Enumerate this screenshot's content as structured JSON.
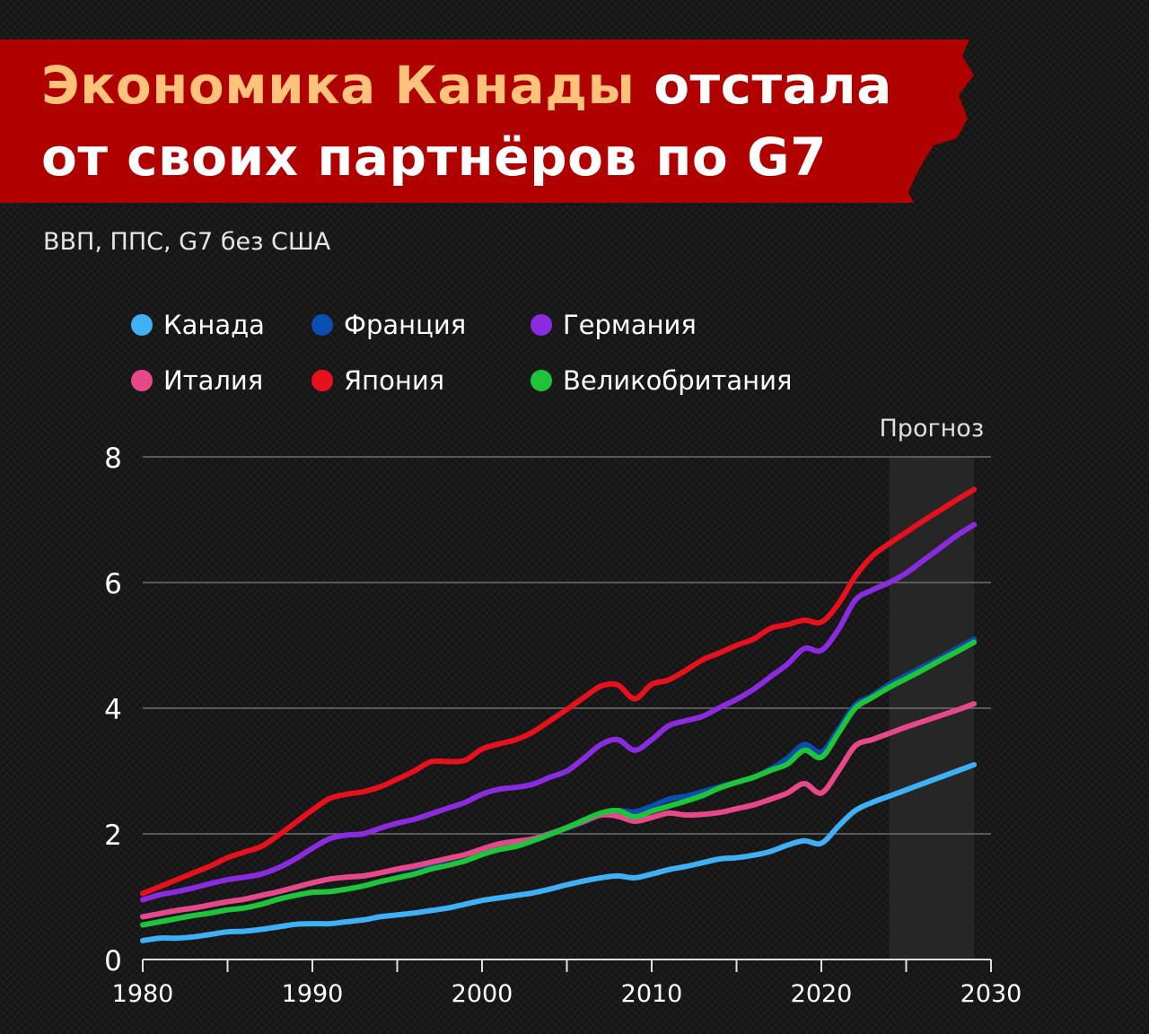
{
  "header": {
    "title_line1_accent": "Экономика Канады",
    "title_line1_rest": "отстала",
    "title_line2": "от своих партнёров по G7",
    "subtitle": "ВВП, ППС, G7 без США"
  },
  "colors": {
    "banner": "#b00000",
    "accent_text": "#ffc27a"
  },
  "chart_data": {
    "type": "line",
    "title": "",
    "xlabel": "",
    "ylabel": "",
    "xlim": [
      1980,
      2030
    ],
    "ylim": [
      0,
      8
    ],
    "x_ticks": [
      1980,
      1990,
      2000,
      2010,
      2020,
      2030
    ],
    "y_ticks": [
      0,
      2,
      4,
      6,
      8
    ],
    "grid": "horizontal",
    "forecast": {
      "label": "Прогноз",
      "start": 2024,
      "end": 2029
    },
    "legend_position": "top-left",
    "x": [
      1980,
      1981,
      1982,
      1983,
      1984,
      1985,
      1986,
      1987,
      1988,
      1989,
      1990,
      1991,
      1992,
      1993,
      1994,
      1995,
      1996,
      1997,
      1998,
      1999,
      2000,
      2001,
      2002,
      2003,
      2004,
      2005,
      2006,
      2007,
      2008,
      2009,
      2010,
      2011,
      2012,
      2013,
      2014,
      2015,
      2016,
      2017,
      2018,
      2019,
      2020,
      2021,
      2022,
      2023,
      2024,
      2025,
      2026,
      2027,
      2028,
      2029
    ],
    "series": [
      {
        "name": "Канада",
        "color": "#3fb0f5",
        "values": [
          0.3,
          0.34,
          0.34,
          0.36,
          0.4,
          0.44,
          0.45,
          0.48,
          0.52,
          0.56,
          0.57,
          0.57,
          0.6,
          0.63,
          0.68,
          0.71,
          0.74,
          0.78,
          0.82,
          0.88,
          0.94,
          0.98,
          1.02,
          1.06,
          1.12,
          1.19,
          1.25,
          1.3,
          1.33,
          1.3,
          1.36,
          1.43,
          1.48,
          1.54,
          1.6,
          1.62,
          1.66,
          1.72,
          1.82,
          1.89,
          1.85,
          2.12,
          2.37,
          2.5,
          2.6,
          2.7,
          2.8,
          2.9,
          3.0,
          3.1
        ]
      },
      {
        "name": "Франция",
        "color": "#0a4fb0",
        "values": [
          0.68,
          0.73,
          0.78,
          0.82,
          0.87,
          0.92,
          0.96,
          1.02,
          1.08,
          1.15,
          1.22,
          1.28,
          1.31,
          1.33,
          1.38,
          1.43,
          1.47,
          1.53,
          1.6,
          1.67,
          1.76,
          1.84,
          1.88,
          1.92,
          2.01,
          2.09,
          2.19,
          2.3,
          2.37,
          2.35,
          2.44,
          2.55,
          2.6,
          2.67,
          2.75,
          2.82,
          2.9,
          3.03,
          3.2,
          3.42,
          3.3,
          3.66,
          4.05,
          4.2,
          4.38,
          4.52,
          4.66,
          4.8,
          4.95,
          5.1
        ]
      },
      {
        "name": "Германия",
        "color": "#8a2be2",
        "values": [
          0.95,
          1.03,
          1.08,
          1.14,
          1.21,
          1.27,
          1.31,
          1.36,
          1.46,
          1.6,
          1.77,
          1.92,
          1.98,
          2.0,
          2.09,
          2.17,
          2.23,
          2.32,
          2.41,
          2.5,
          2.63,
          2.71,
          2.74,
          2.79,
          2.9,
          3.0,
          3.2,
          3.42,
          3.5,
          3.33,
          3.5,
          3.72,
          3.8,
          3.87,
          4.01,
          4.14,
          4.3,
          4.5,
          4.7,
          4.95,
          4.92,
          5.25,
          5.72,
          5.88,
          6.0,
          6.15,
          6.35,
          6.55,
          6.75,
          6.92
        ]
      },
      {
        "name": "Италия",
        "color": "#e8488a",
        "values": [
          0.68,
          0.73,
          0.78,
          0.82,
          0.87,
          0.92,
          0.96,
          1.02,
          1.08,
          1.15,
          1.22,
          1.28,
          1.31,
          1.33,
          1.38,
          1.44,
          1.49,
          1.55,
          1.61,
          1.67,
          1.76,
          1.84,
          1.88,
          1.92,
          2.0,
          2.1,
          2.2,
          2.3,
          2.28,
          2.2,
          2.26,
          2.33,
          2.3,
          2.31,
          2.34,
          2.4,
          2.46,
          2.55,
          2.65,
          2.8,
          2.65,
          3.0,
          3.4,
          3.5,
          3.6,
          3.7,
          3.79,
          3.88,
          3.97,
          4.07
        ]
      },
      {
        "name": "Япония",
        "color": "#e8101c",
        "values": [
          1.05,
          1.16,
          1.27,
          1.38,
          1.49,
          1.62,
          1.71,
          1.8,
          1.98,
          2.18,
          2.38,
          2.56,
          2.63,
          2.67,
          2.75,
          2.87,
          3.0,
          3.15,
          3.15,
          3.17,
          3.35,
          3.43,
          3.5,
          3.62,
          3.8,
          3.98,
          4.17,
          4.35,
          4.37,
          4.15,
          4.38,
          4.45,
          4.6,
          4.77,
          4.88,
          5.0,
          5.1,
          5.27,
          5.33,
          5.4,
          5.37,
          5.66,
          6.1,
          6.42,
          6.62,
          6.8,
          6.98,
          7.15,
          7.32,
          7.48
        ]
      },
      {
        "name": "Великобритания",
        "color": "#1ec43a",
        "values": [
          0.55,
          0.6,
          0.65,
          0.7,
          0.74,
          0.79,
          0.82,
          0.88,
          0.96,
          1.02,
          1.07,
          1.08,
          1.12,
          1.17,
          1.24,
          1.3,
          1.36,
          1.44,
          1.5,
          1.57,
          1.67,
          1.75,
          1.8,
          1.89,
          1.99,
          2.1,
          2.22,
          2.33,
          2.37,
          2.27,
          2.36,
          2.44,
          2.52,
          2.61,
          2.73,
          2.82,
          2.9,
          3.01,
          3.11,
          3.33,
          3.22,
          3.6,
          4.0,
          4.17,
          4.33,
          4.47,
          4.61,
          4.76,
          4.9,
          5.05
        ]
      }
    ]
  }
}
